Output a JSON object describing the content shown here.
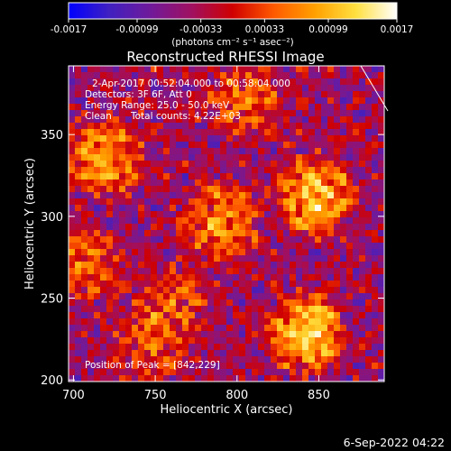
{
  "chart_data": {
    "type": "heatmap",
    "title": "Reconstructed RHESSI Image",
    "xlabel": "Heliocentric X (arcsec)",
    "ylabel": "Heliocentric Y (arcsec)",
    "xlim": [
      697,
      890
    ],
    "ylim": [
      199,
      392
    ],
    "xticks": [
      "700",
      "750",
      "800",
      "850"
    ],
    "yticks": [
      "200",
      "250",
      "300",
      "350"
    ],
    "colorbar": {
      "min": -0.0017,
      "max": 0.0017,
      "ticks": [
        "-0.0017",
        "-0.00099",
        "-0.00033",
        "0.00033",
        "0.00099",
        "0.0017"
      ],
      "unit_label": "(photons cm⁻² s⁻¹ asec⁻²)"
    },
    "annotations": [
      "2-Apr-2017 00:52:04.000 to 00:58:04.000",
      "Detectors: 3F 6F, Att 0",
      "Energy Range: 25.0 - 50.0 keV",
      "Clean",
      "Total counts: 4.22E+03"
    ],
    "peak_label": "Position of Peak = [842,229]",
    "timestamp": "6-Sep-2022 04:22",
    "sources": [
      {
        "x": 720,
        "y": 336,
        "intensity": 0.00135
      },
      {
        "x": 848,
        "y": 313,
        "intensity": 0.0016
      },
      {
        "x": 790,
        "y": 296,
        "intensity": 0.0012
      },
      {
        "x": 842,
        "y": 229,
        "intensity": 0.0017
      },
      {
        "x": 805,
        "y": 372,
        "intensity": 0.0009
      },
      {
        "x": 760,
        "y": 247,
        "intensity": 0.0008
      },
      {
        "x": 707,
        "y": 272,
        "intensity": 0.0009
      },
      {
        "x": 745,
        "y": 218,
        "intensity": 0.0006
      }
    ]
  },
  "colors": {
    "background": "#000000",
    "colormap": [
      "#0000ff",
      "#4020c0",
      "#701a9a",
      "#a01060",
      "#d00000",
      "#ff5a00",
      "#ffa000",
      "#ffe040",
      "#ffffff"
    ]
  }
}
